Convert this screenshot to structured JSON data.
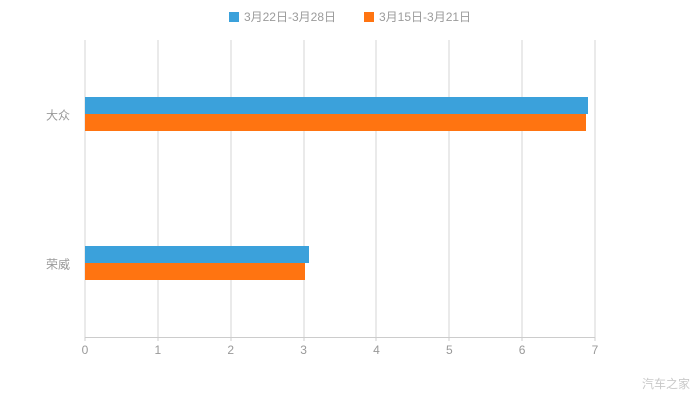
{
  "watermark": "汽车之家",
  "chart_data": {
    "type": "bar",
    "orientation": "horizontal",
    "title": "",
    "xlabel": "",
    "ylabel": "",
    "categories": [
      "大众",
      "荣威"
    ],
    "series": [
      {
        "name": "3月22日-3月28日",
        "color": "#3BA1DB",
        "values": [
          6.9,
          3.08
        ]
      },
      {
        "name": "3月15日-3月21日",
        "color": "#FF7411",
        "values": [
          6.88,
          3.02
        ]
      }
    ],
    "xlim": [
      0,
      7
    ],
    "xticks": [
      0,
      1,
      2,
      3,
      4,
      5,
      6,
      7
    ],
    "grid": true,
    "legend_position": "top",
    "bar_thickness_px": 17
  }
}
